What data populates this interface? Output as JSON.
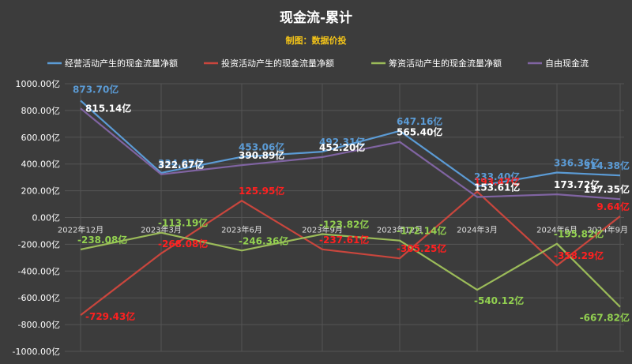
{
  "chart_data": {
    "type": "line",
    "title": "现金流-累计",
    "subtitle": "制图：数据价投",
    "categories": [
      "2022年12月",
      "2023年3月",
      "2023年6月",
      "2023年9月",
      "2023年12月",
      "2024年3月",
      "2024年6月",
      "2024年9月"
    ],
    "ylim": [
      -1000,
      1000
    ],
    "yticks": [
      "1000.00亿",
      "800.00亿",
      "600.00亿",
      "400.00亿",
      "200.00亿",
      "0.00亿",
      "-200.00亿",
      "-400.00亿",
      "-600.00亿",
      "-800.00亿",
      "-1000.00亿"
    ],
    "ytick_values": [
      1000,
      800,
      600,
      400,
      200,
      0,
      -200,
      -400,
      -600,
      -800,
      -1000
    ],
    "grid": true,
    "legend_position": "top",
    "series": [
      {
        "name": "经营活动产生的现金流量净额",
        "color": "#5b9bd5",
        "label_color": "#5b9bd5",
        "values": [
          873.7,
          334.07,
          453.06,
          492.31,
          647.16,
          233.4,
          336.36,
          314.38
        ],
        "labels": [
          "873.70亿",
          "334.07亿",
          "453.06亿",
          "492.31亿",
          "647.16亿",
          "233.40亿",
          "336.36亿",
          "314.38亿"
        ]
      },
      {
        "name": "投资活动产生的现金流量净额",
        "color": "#c9463d",
        "label_color": "#ff2020",
        "values": [
          -729.43,
          -268.08,
          125.95,
          -237.61,
          -305.25,
          193.47,
          -358.29,
          9.64
        ],
        "labels": [
          "-729.43亿",
          "-268.08亿",
          "125.95亿",
          "-237.61亿",
          "-305.25亿",
          "193.47亿",
          "-358.29亿",
          "9.64亿"
        ]
      },
      {
        "name": "筹资活动产生的现金流量净额",
        "color": "#9bbb59",
        "label_color": "#92d050",
        "values": [
          -238.08,
          -113.19,
          -246.36,
          -123.82,
          -172.14,
          -540.12,
          -195.82,
          -667.82
        ],
        "labels": [
          "-238.08亿",
          "-113.19亿",
          "-246.36亿",
          "-123.82亿",
          "-172.14亿",
          "-540.12亿",
          "-195.82亿",
          "-667.82亿"
        ]
      },
      {
        "name": "自由现金流",
        "color": "#8064a2",
        "label_color": "#ffffff",
        "values": [
          815.14,
          322.67,
          390.89,
          452.2,
          565.4,
          153.61,
          173.72,
          137.35
        ],
        "labels": [
          "815.14亿",
          "322.67亿",
          "390.89亿",
          "452.20亿",
          "565.40亿",
          "153.61亿",
          "173.72亿",
          "137.35亿"
        ]
      }
    ]
  }
}
